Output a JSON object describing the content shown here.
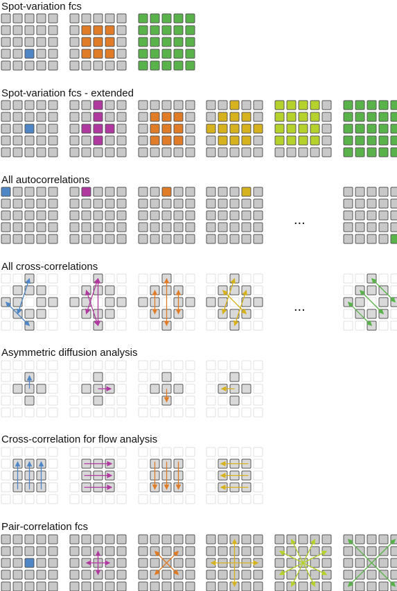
{
  "colors": {
    "cell_fill": "#c8c8c8",
    "cell_stroke": "#555555",
    "faint_fill": "#ffffff",
    "faint_stroke": "#e0e0e0",
    "mid_fill": "#d9d9d9",
    "blue": "#4f86c6",
    "orange": "#e07b28",
    "green": "#5ab34a",
    "magenta": "#b0399f",
    "gold": "#d6b21f",
    "lime": "#b5d22c"
  },
  "sections": [
    {
      "title": "Spot-variation fcs",
      "grids": [
        {
          "name": "sv-grid-1",
          "cells": "blue:2,3"
        },
        {
          "name": "sv-grid-2",
          "cells": "orange:1-3,1-3"
        },
        {
          "name": "sv-grid-3",
          "cells": "green:0-4,0-4"
        }
      ]
    },
    {
      "title": "Spot-variation fcs - extended",
      "grids": [
        {
          "name": "sve-grid-1",
          "cells": "blue:2,3"
        },
        {
          "name": "sve-grid-2",
          "cells": "magenta:plus"
        },
        {
          "name": "sve-grid-3",
          "cells": "orange:1-3,1-3"
        },
        {
          "name": "sve-grid-4",
          "cells": "gold:diamond"
        },
        {
          "name": "sve-grid-5",
          "cells": "lime:big"
        },
        {
          "name": "sve-grid-6",
          "cells": "green:0-4,0-4"
        }
      ]
    },
    {
      "title": "All autocorrelations",
      "ellipsis": "...",
      "grids": [
        {
          "name": "ac-grid-1",
          "cells": "blue:0,0"
        },
        {
          "name": "ac-grid-2",
          "cells": "magenta:1,0"
        },
        {
          "name": "ac-grid-3",
          "cells": "orange:2,0"
        },
        {
          "name": "ac-grid-4",
          "cells": "gold:3,0"
        },
        {
          "name": "ac-grid-last",
          "cells": "green:4,4"
        }
      ]
    },
    {
      "title": "All cross-correlations",
      "ellipsis": "..."
    },
    {
      "title": "Asymmetric diffusion analysis"
    },
    {
      "title": "Cross-correlation for flow analysis"
    },
    {
      "title": "Pair-correlation fcs"
    }
  ]
}
